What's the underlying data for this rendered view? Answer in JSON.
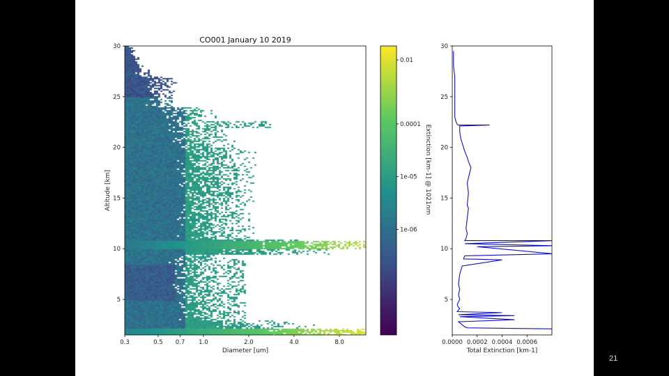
{
  "slide": {
    "page_number": "21"
  },
  "chart_data": [
    {
      "type": "heatmap",
      "title": "CO001   January 10 2019",
      "xlabel": "Diameter [um]",
      "ylabel": "Altitude [km]",
      "x_scale": "log",
      "xlim": [
        0.3,
        12
      ],
      "ylim": [
        1.5,
        30
      ],
      "x_ticks": [
        {
          "value": 0.3,
          "label": "0.3"
        },
        {
          "value": 0.5,
          "label": "0.5"
        },
        {
          "value": 0.7,
          "label": "0.7"
        },
        {
          "value": 1.0,
          "label": "1.0"
        },
        {
          "value": 2.0,
          "label": "2.0"
        },
        {
          "value": 4.0,
          "label": "4.0"
        },
        {
          "value": 8.0,
          "label": "8.0"
        }
      ],
      "y_ticks": [
        {
          "value": 5,
          "label": "5"
        },
        {
          "value": 10,
          "label": "10"
        },
        {
          "value": 15,
          "label": "15"
        },
        {
          "value": 20,
          "label": "20"
        },
        {
          "value": 25,
          "label": "25"
        },
        {
          "value": 30,
          "label": "30"
        }
      ],
      "colorbar": {
        "label": "Extinction [km-1] @ 1021nm",
        "scale": "log",
        "range": [
          1e-08,
          0.003
        ],
        "ticks": [
          {
            "value": 0.01,
            "label": "0.01"
          },
          {
            "value": 0.0001,
            "label": "0.0001"
          },
          {
            "value": 1e-05,
            "label": "1e-05"
          },
          {
            "value": 1e-06,
            "label": "1e-06"
          }
        ],
        "colormap": [
          "#440154",
          "#3b528b",
          "#21918c",
          "#5ec962",
          "#fde725"
        ]
      },
      "features": [
        {
          "altitude_km": 10.3,
          "description": "enhanced layer extending to large diameters"
        },
        {
          "altitude_km": 2,
          "description": "near-surface enhancement extending to large diameters"
        },
        {
          "altitude_km": 22.3,
          "description": "thin layer"
        }
      ]
    },
    {
      "type": "line",
      "xlabel": "Total Extinction [km-1]",
      "ylabel": "",
      "xlim": [
        0.0,
        0.0008
      ],
      "ylim": [
        1.5,
        30
      ],
      "x_ticks": [
        {
          "value": 0.0,
          "label": "0.0000"
        },
        {
          "value": 0.0002,
          "label": "0.0002"
        },
        {
          "value": 0.0004,
          "label": "0.0004"
        },
        {
          "value": 0.0006,
          "label": "0.0006"
        }
      ],
      "y_ticks": [
        {
          "value": 5,
          "label": "5"
        },
        {
          "value": 10,
          "label": "10"
        },
        {
          "value": 15,
          "label": "15"
        },
        {
          "value": 20,
          "label": "20"
        },
        {
          "value": 25,
          "label": "25"
        },
        {
          "value": 30,
          "label": "30"
        }
      ],
      "line_color": "#1010c0",
      "series": [
        {
          "x": [
            1e-05,
            1e-05,
            2e-05,
            2e-05,
            2e-05,
            2e-05,
            3e-05,
            4e-05,
            4e-05,
            5e-05,
            0.0003,
            6e-05,
            6e-05,
            7e-05,
            9e-05,
            0.0001,
            0.00011,
            0.00012,
            0.00013,
            0.00014,
            0.00015,
            0.00014,
            0.00012,
            0.00013,
            0.00012,
            0.00013,
            0.00012,
            0.00011,
            0.00012,
            0.00011,
            0.0001,
            0.0009,
            0.0001,
            0.0009,
            0.0002,
            0.0009,
            0.0001,
            9e-05,
            0.0004,
            8e-05,
            6e-05,
            5e-05,
            6e-05,
            5e-05,
            6e-05,
            4e-05,
            5e-05,
            6e-05,
            4e-05,
            0.0004,
            5e-05,
            0.0005,
            6e-05,
            0.0005,
            5e-05,
            8e-05,
            0.0001,
            0.00012,
            0.0008,
            0.0008
          ],
          "y": [
            29.5,
            28.0,
            27.0,
            25.0,
            24.0,
            23.0,
            22.5,
            22.3,
            22.25,
            22.2,
            22.2,
            22.1,
            21.5,
            20.8,
            20.0,
            19.6,
            19.3,
            19.0,
            18.6,
            18.3,
            18.0,
            17.5,
            16.5,
            15.5,
            14.3,
            14.0,
            13.0,
            12.0,
            11.5,
            11.0,
            10.8,
            10.8,
            10.5,
            10.3,
            10.2,
            9.5,
            9.3,
            9.0,
            8.9,
            8.3,
            7.5,
            6.5,
            6.0,
            5.5,
            5.0,
            4.5,
            4.2,
            4.1,
            3.8,
            3.7,
            3.5,
            3.4,
            3.3,
            3.0,
            2.8,
            2.5,
            2.3,
            2.2,
            2.1,
            1.5
          ]
        }
      ]
    }
  ]
}
